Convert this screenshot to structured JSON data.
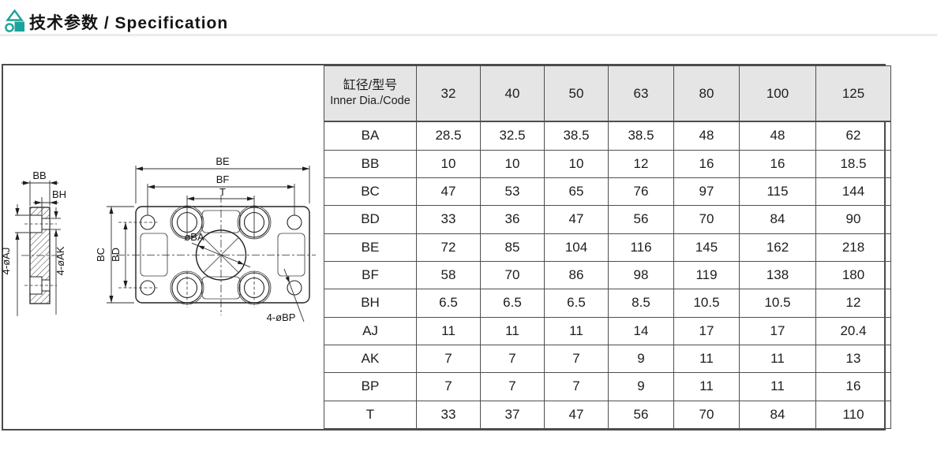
{
  "page": {
    "title": "技术参数 / Specification"
  },
  "colors": {
    "accent_teal": "#1aa39b",
    "table_header_bg": "#e5e5e5",
    "border_dark": "#4b4b4b",
    "text": "#1d1d1d"
  },
  "drawing": {
    "labels": {
      "bb": "BB",
      "bh": "BH",
      "aj": "4-øAJ",
      "ak": "4-øAK",
      "be": "BE",
      "bf": "BF",
      "t": "T",
      "bc": "BC",
      "bd": "BD",
      "ba": "øBA",
      "bp": "4-øBP"
    }
  },
  "table": {
    "header": {
      "col0_cn": "缸径/型号",
      "col0_en": "Inner Dia./Code",
      "columns": [
        "32",
        "40",
        "50",
        "63",
        "80",
        "100",
        "125"
      ]
    },
    "rows": [
      {
        "label": "BA",
        "values": [
          "28.5",
          "32.5",
          "38.5",
          "38.5",
          "48",
          "48",
          "62"
        ]
      },
      {
        "label": "BB",
        "values": [
          "10",
          "10",
          "10",
          "12",
          "16",
          "16",
          "18.5"
        ]
      },
      {
        "label": "BC",
        "values": [
          "47",
          "53",
          "65",
          "76",
          "97",
          "115",
          "144"
        ]
      },
      {
        "label": "BD",
        "values": [
          "33",
          "36",
          "47",
          "56",
          "70",
          "84",
          "90"
        ]
      },
      {
        "label": "BE",
        "values": [
          "72",
          "85",
          "104",
          "116",
          "145",
          "162",
          "218"
        ]
      },
      {
        "label": "BF",
        "values": [
          "58",
          "70",
          "86",
          "98",
          "119",
          "138",
          "180"
        ]
      },
      {
        "label": "BH",
        "values": [
          "6.5",
          "6.5",
          "6.5",
          "8.5",
          "10.5",
          "10.5",
          "12"
        ]
      },
      {
        "label": "AJ",
        "values": [
          "11",
          "11",
          "11",
          "14",
          "17",
          "17",
          "20.4"
        ]
      },
      {
        "label": "AK",
        "values": [
          "7",
          "7",
          "7",
          "9",
          "11",
          "11",
          "13"
        ]
      },
      {
        "label": "BP",
        "values": [
          "7",
          "7",
          "7",
          "9",
          "11",
          "11",
          "16"
        ]
      },
      {
        "label": "T",
        "values": [
          "33",
          "37",
          "47",
          "56",
          "70",
          "84",
          "110"
        ]
      }
    ]
  }
}
